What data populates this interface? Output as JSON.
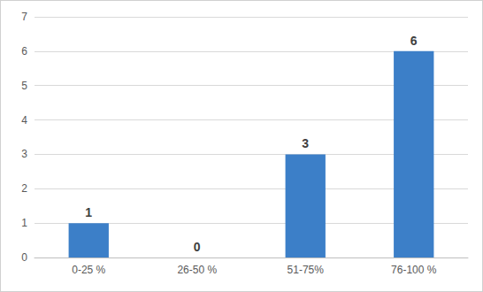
{
  "chart_data": {
    "type": "bar",
    "categories": [
      "0-25 %",
      "26-50 %",
      "51-75%",
      "76-100 %"
    ],
    "values": [
      1,
      0,
      3,
      6
    ],
    "color": "#3c7fc8",
    "ylim": [
      0,
      7
    ],
    "yticks": [
      0,
      1,
      2,
      3,
      4,
      5,
      6,
      7
    ],
    "grid": true,
    "data_labels": true
  }
}
